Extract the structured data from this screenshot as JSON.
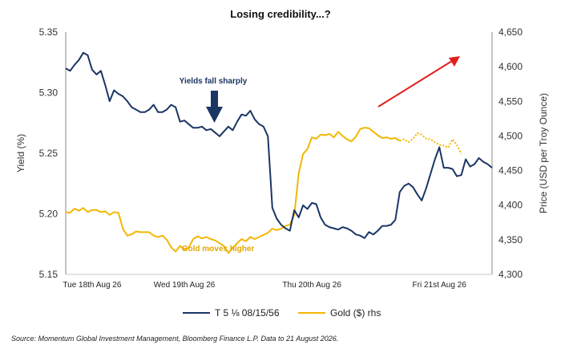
{
  "chart_data": {
    "type": "line",
    "title": "Losing credibility...?",
    "ylabel": "Yield (%)",
    "y2label": "Price (USD per Troy Ounce)",
    "ylim": [
      5.15,
      5.35
    ],
    "y_ticks": [
      "5.15",
      "5.20",
      "5.25",
      "5.30",
      "5.35"
    ],
    "y2lim": [
      4300,
      4650
    ],
    "y2_ticks": [
      "4,300",
      "4,350",
      "4,400",
      "4,450",
      "4,500",
      "4,550",
      "4,600",
      "4,650"
    ],
    "x_ticks": [
      {
        "x": 6,
        "label": "Tue 18th Aug 26"
      },
      {
        "x": 27,
        "label": "Wed 19th Aug 26"
      },
      {
        "x": 56,
        "label": "Thu 20th Aug 26"
      },
      {
        "x": 85,
        "label": "Fri 21st Aug 26"
      }
    ],
    "grid": false,
    "legend_position": "bottom",
    "legend": [
      "T 5 ⅛ 08/15/56",
      "Gold ($) rhs"
    ],
    "annotations": {
      "yields": "Yields fall sharply",
      "gold": "Gold moves higher"
    },
    "colors": {
      "yield": "#1b3665",
      "gold": "#f2b705",
      "arrow_red": "#e0201b",
      "arrow_blue": "#1b3665",
      "gold_label": "#e2a800"
    },
    "source": "Source: Momentum Global Investment Management, Bloomberg Finance L.P. Data to 21 August 2026.",
    "series": [
      {
        "name": "T 5 ⅛ 08/15/56",
        "axis": "left",
        "x": [
          0,
          1,
          2,
          3,
          4,
          5,
          6,
          7,
          8,
          9,
          10,
          11,
          12,
          13,
          14,
          15,
          16,
          17,
          18,
          19,
          20,
          21,
          22,
          23,
          24,
          25,
          26,
          27,
          28,
          29,
          30,
          31,
          32,
          33,
          34,
          35,
          36,
          37,
          38,
          39,
          40,
          41,
          42,
          43,
          44,
          45,
          46,
          47,
          48,
          49,
          50,
          51,
          52,
          53,
          54,
          55,
          56,
          57,
          58,
          59,
          60,
          61,
          62,
          63,
          64,
          65,
          66,
          67,
          68,
          69,
          70,
          71,
          72,
          73,
          74,
          75,
          76,
          77,
          78,
          79,
          80,
          81,
          82,
          83,
          84,
          85,
          86,
          87,
          88,
          89,
          90,
          91,
          92,
          93,
          94,
          95,
          96,
          97
        ],
        "values": [
          5.32,
          5.318,
          5.323,
          5.327,
          5.333,
          5.331,
          5.319,
          5.315,
          5.318,
          5.306,
          5.293,
          5.302,
          5.299,
          5.297,
          5.293,
          5.288,
          5.286,
          5.284,
          5.284,
          5.286,
          5.29,
          5.284,
          5.284,
          5.286,
          5.29,
          5.288,
          5.276,
          5.277,
          5.274,
          5.271,
          5.271,
          5.272,
          5.269,
          5.27,
          5.267,
          5.264,
          5.268,
          5.272,
          5.269,
          5.276,
          5.282,
          5.281,
          5.285,
          5.278,
          5.274,
          5.272,
          5.264,
          5.205,
          5.196,
          5.191,
          5.188,
          5.186,
          5.203,
          5.197,
          5.207,
          5.204,
          5.209,
          5.208,
          5.197,
          5.191,
          5.189,
          5.188,
          5.187,
          5.189,
          5.188,
          5.186,
          5.183,
          5.182,
          5.18,
          5.185,
          5.183,
          5.186,
          5.19,
          5.19,
          5.191,
          5.195,
          5.218,
          5.223,
          5.225,
          5.222,
          5.216,
          5.211,
          5.221,
          5.233,
          5.245,
          5.255,
          5.238,
          5.238,
          5.237,
          5.231,
          5.232,
          5.245,
          5.239,
          5.241,
          5.246,
          5.243,
          5.241,
          5.238
        ]
      },
      {
        "name": "Gold ($) rhs",
        "axis": "right",
        "x": [
          0,
          1,
          2,
          3,
          4,
          5,
          6,
          7,
          8,
          9,
          10,
          11,
          12,
          13,
          14,
          15,
          16,
          17,
          18,
          19,
          20,
          21,
          22,
          23,
          24,
          25,
          26,
          27,
          28,
          29,
          30,
          31,
          32,
          33,
          34,
          35,
          36,
          37,
          38,
          39,
          40,
          41,
          42,
          43,
          44,
          45,
          46,
          47,
          48,
          49,
          50,
          51,
          52,
          53,
          54,
          55,
          56,
          57,
          58,
          59,
          60,
          61,
          62,
          63,
          64,
          65,
          66,
          67,
          68,
          69,
          70,
          71,
          72,
          73,
          74,
          75,
          76,
          77,
          78,
          79,
          80,
          81,
          82,
          83,
          84,
          85,
          86,
          87,
          88,
          89,
          90
        ],
        "values": [
          4390,
          4389,
          4395,
          4392,
          4396,
          4390,
          4393,
          4393,
          4390,
          4391,
          4386,
          4390,
          4389,
          4366,
          4356,
          4358,
          4362,
          4361,
          4361,
          4361,
          4356,
          4354,
          4356,
          4350,
          4339,
          4333,
          4341,
          4336,
          4339,
          4351,
          4355,
          4352,
          4354,
          4351,
          4349,
          4345,
          4341,
          4331,
          4338,
          4345,
          4351,
          4348,
          4354,
          4351,
          4354,
          4357,
          4360,
          4366,
          4364,
          4366,
          4370,
          4372,
          4386,
          4446,
          4474,
          4481,
          4498,
          4496,
          4502,
          4501,
          4503,
          4498,
          4506,
          4500,
          4495,
          4492,
          4499,
          4510,
          4512,
          4511,
          4506,
          4501,
          4497,
          4498,
          4496,
          4497,
          4493,
          4495,
          4491,
          4496,
          4504,
          4502,
          4496,
          4495,
          4491,
          4487,
          4486,
          4483,
          4495,
          4487,
          4474
        ]
      }
    ]
  }
}
